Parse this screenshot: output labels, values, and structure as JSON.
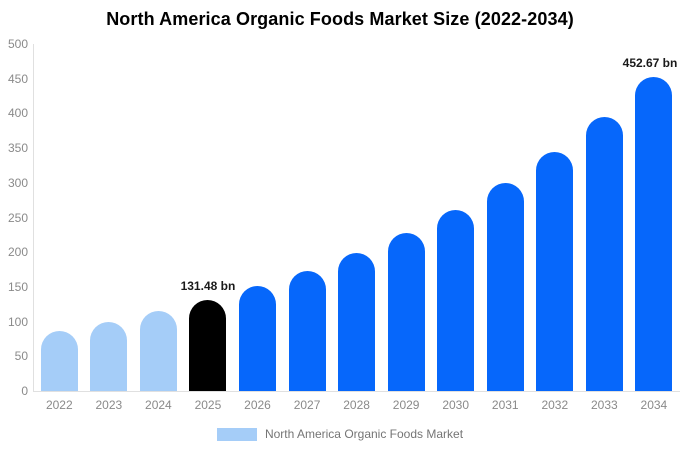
{
  "chart_data": {
    "type": "bar",
    "title": "North America Organic Foods Market Size (2022-2034)",
    "unit": "USD billion",
    "categories": [
      "2022",
      "2023",
      "2024",
      "2025",
      "2026",
      "2027",
      "2028",
      "2029",
      "2030",
      "2031",
      "2032",
      "2033",
      "2034"
    ],
    "values": [
      87.1,
      99.9,
      114.6,
      131.48,
      150.9,
      173.1,
      198.6,
      227.8,
      261.3,
      299.8,
      344.0,
      394.6,
      452.67
    ],
    "value_labels": [
      "",
      "",
      "",
      "131.48 bn",
      "",
      "",
      "",
      "",
      "",
      "",
      "",
      "",
      "452.67 bn"
    ],
    "bar_roles": [
      "historical",
      "historical",
      "historical",
      "base_year",
      "forecast",
      "forecast",
      "forecast",
      "forecast",
      "forecast",
      "forecast",
      "forecast",
      "forecast",
      "forecast"
    ],
    "colors": {
      "historical": "#a5cdf8",
      "base_year": "#000000",
      "forecast": "#0667fb",
      "axis_text": "#8a8a8a",
      "axis_line": "#e0e0e0",
      "value_label_text": "#1a1a1a",
      "legend_text": "#757575",
      "background": "#ffffff"
    },
    "xlabel": "",
    "ylabel": "",
    "ylim": [
      0,
      500
    ],
    "yticks": [
      0,
      50,
      100,
      150,
      200,
      250,
      300,
      350,
      400,
      450,
      500
    ],
    "grid": false,
    "legend": [
      {
        "label": "North America Organic Foods Market",
        "color": "#a5cdf8"
      }
    ],
    "legend_position": "bottom"
  }
}
